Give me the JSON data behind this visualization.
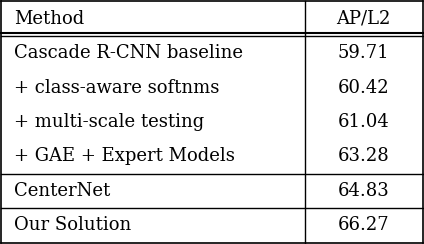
{
  "col_headers": [
    "Method",
    "AP/L2"
  ],
  "rows": [
    [
      "Cascade R-CNN baseline",
      "59.71"
    ],
    [
      "+ class-aware softnms",
      "60.42"
    ],
    [
      "+ multi-scale testing",
      "61.04"
    ],
    [
      "+ GAE + Expert Models",
      "63.28"
    ],
    [
      "CenterNet",
      "64.83"
    ],
    [
      "Our Solution",
      "66.27"
    ]
  ],
  "group_dividers_after": [
    3,
    4
  ],
  "bg_color": "#ffffff",
  "text_color": "#000000",
  "font_size": 13,
  "header_font_size": 13,
  "col_split": 0.72,
  "figsize": [
    4.24,
    2.44
  ],
  "dpi": 100
}
